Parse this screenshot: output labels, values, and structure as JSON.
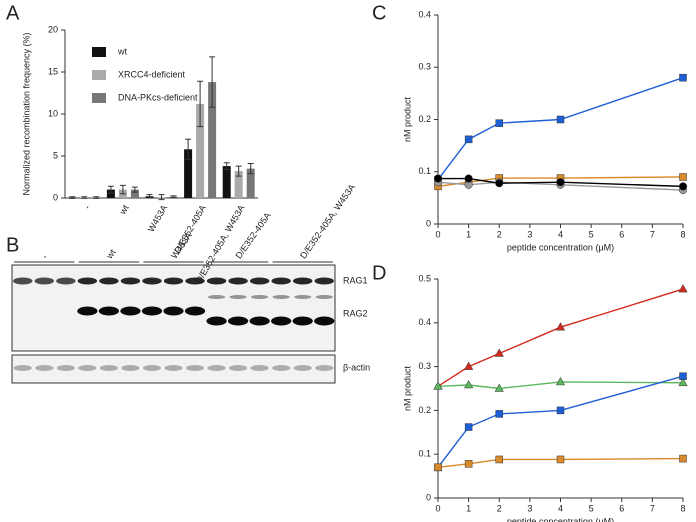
{
  "panels": [
    "A",
    "B",
    "C",
    "D"
  ],
  "blot": {
    "lanes": [
      "-",
      "wt",
      "W453A",
      "D/E352-405A",
      "D/E352-405A, W453A"
    ],
    "bands": [
      "RAG1",
      "RAG2",
      "β-actin"
    ]
  },
  "chart_data": [
    {
      "type": "bar",
      "y_label": "Normalized recombination frequency (%)",
      "categories": [
        "-",
        "wt",
        "W453A",
        "D/E352-405A",
        "D/E352-405A, W453A"
      ],
      "series": [
        {
          "name": "wt",
          "color": "#111111",
          "values": [
            0.05,
            1.0,
            0.2,
            5.8,
            3.8
          ],
          "errors": [
            0.1,
            0.4,
            0.2,
            1.2,
            0.4
          ]
        },
        {
          "name": "XRCC4-deficient",
          "color": "#aaaaaa",
          "values": [
            0.05,
            1.0,
            0.1,
            11.2,
            3.2
          ],
          "errors": [
            0.1,
            0.5,
            0.3,
            2.7,
            0.6
          ]
        },
        {
          "name": "DNA-PKcs-deficient",
          "color": "#777777",
          "values": [
            0.05,
            1.0,
            0.15,
            13.8,
            3.5
          ],
          "errors": [
            0.1,
            0.3,
            0.1,
            3.0,
            0.6
          ]
        }
      ],
      "ylim": [
        0,
        20
      ],
      "yticks": [
        0,
        5,
        10,
        15,
        20
      ],
      "grid": false
    },
    {
      "type": "line",
      "y_label": "nM product",
      "x_label": "peptide concentration (μM)",
      "x": [
        0,
        1,
        2,
        4,
        8
      ],
      "xlim": [
        0,
        8
      ],
      "xticks": [
        0,
        1,
        2,
        3,
        4,
        5,
        6,
        7,
        8
      ],
      "ylim": [
        0,
        0.4
      ],
      "yticks": [
        0,
        0.1,
        0.2,
        0.3,
        0.4
      ],
      "grid": false,
      "series": [
        {
          "color": "#1f5fd6",
          "marker": "square",
          "values": [
            0.085,
            0.162,
            0.193,
            0.2,
            0.28
          ]
        },
        {
          "color": "#d98a2b",
          "marker": "square",
          "values": [
            0.072,
            0.08,
            0.088,
            0.088,
            0.09
          ]
        },
        {
          "color": "#999999",
          "marker": "circle",
          "values": [
            0.08,
            0.075,
            0.08,
            0.075,
            0.065
          ]
        },
        {
          "color": "#000000",
          "marker": "circle",
          "values": [
            0.087,
            0.087,
            0.078,
            0.08,
            0.072
          ]
        }
      ]
    },
    {
      "type": "line",
      "y_label": "nM product",
      "x_label": "peptide concentration (μM)",
      "x": [
        0,
        1,
        2,
        4,
        8
      ],
      "xlim": [
        0,
        8
      ],
      "xticks": [
        0,
        1,
        2,
        3,
        4,
        5,
        6,
        7,
        8
      ],
      "ylim": [
        0,
        0.5
      ],
      "yticks": [
        0,
        0.1,
        0.2,
        0.3,
        0.4,
        0.5
      ],
      "grid": false,
      "series": [
        {
          "color": "#d42a1e",
          "marker": "triangle",
          "values": [
            0.255,
            0.3,
            0.33,
            0.39,
            0.477
          ]
        },
        {
          "color": "#5cb85c",
          "marker": "triangle",
          "values": [
            0.255,
            0.258,
            0.25,
            0.265,
            0.263
          ]
        },
        {
          "color": "#1f5fd6",
          "marker": "square",
          "values": [
            0.07,
            0.162,
            0.192,
            0.2,
            0.278
          ]
        },
        {
          "color": "#d98a2b",
          "marker": "square",
          "values": [
            0.07,
            0.078,
            0.088,
            0.088,
            0.09
          ]
        }
      ]
    }
  ]
}
